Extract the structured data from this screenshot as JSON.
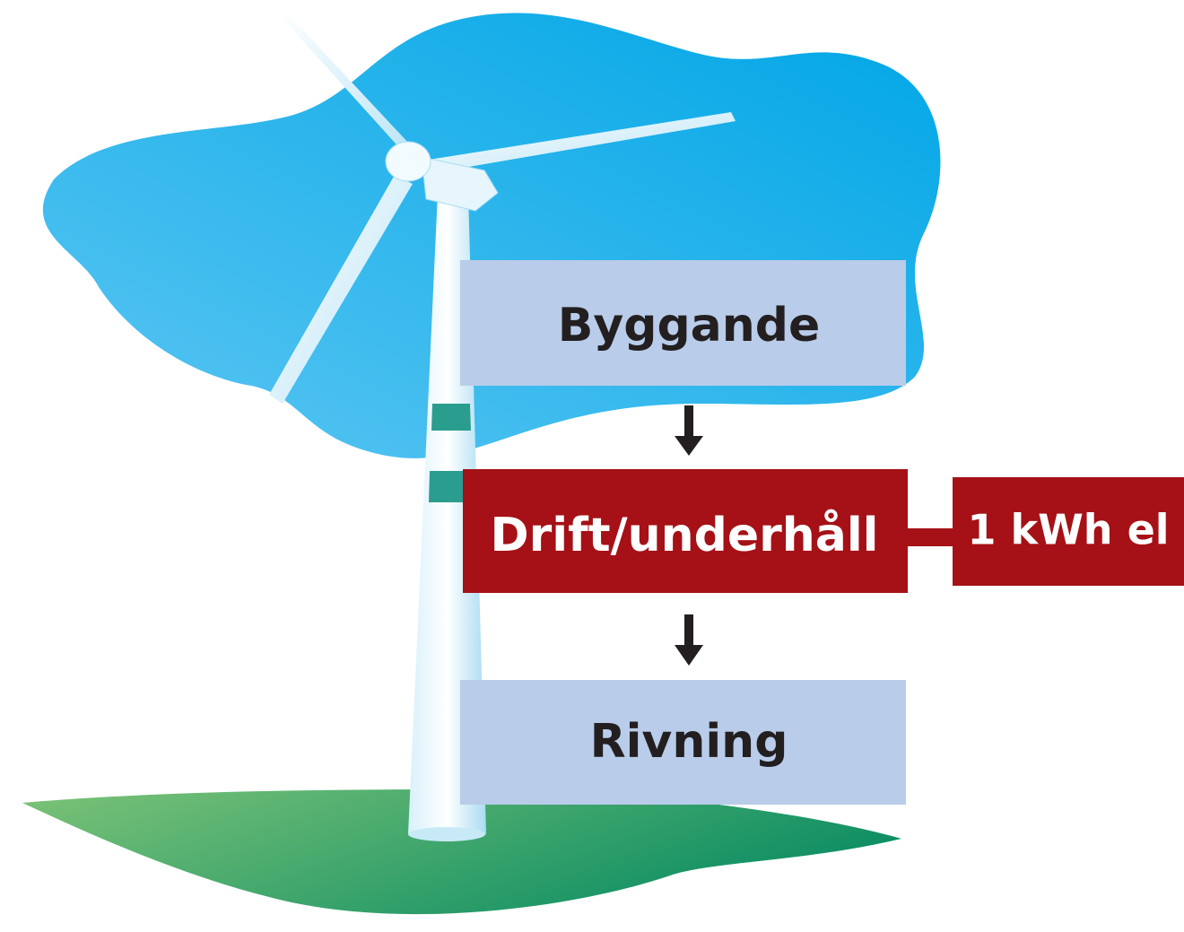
{
  "nodes": [
    {
      "label": "Byggande"
    },
    {
      "label": "Drift/underhåll"
    },
    {
      "label": "Rivning"
    }
  ],
  "output": {
    "label": "1 kWh el"
  }
}
